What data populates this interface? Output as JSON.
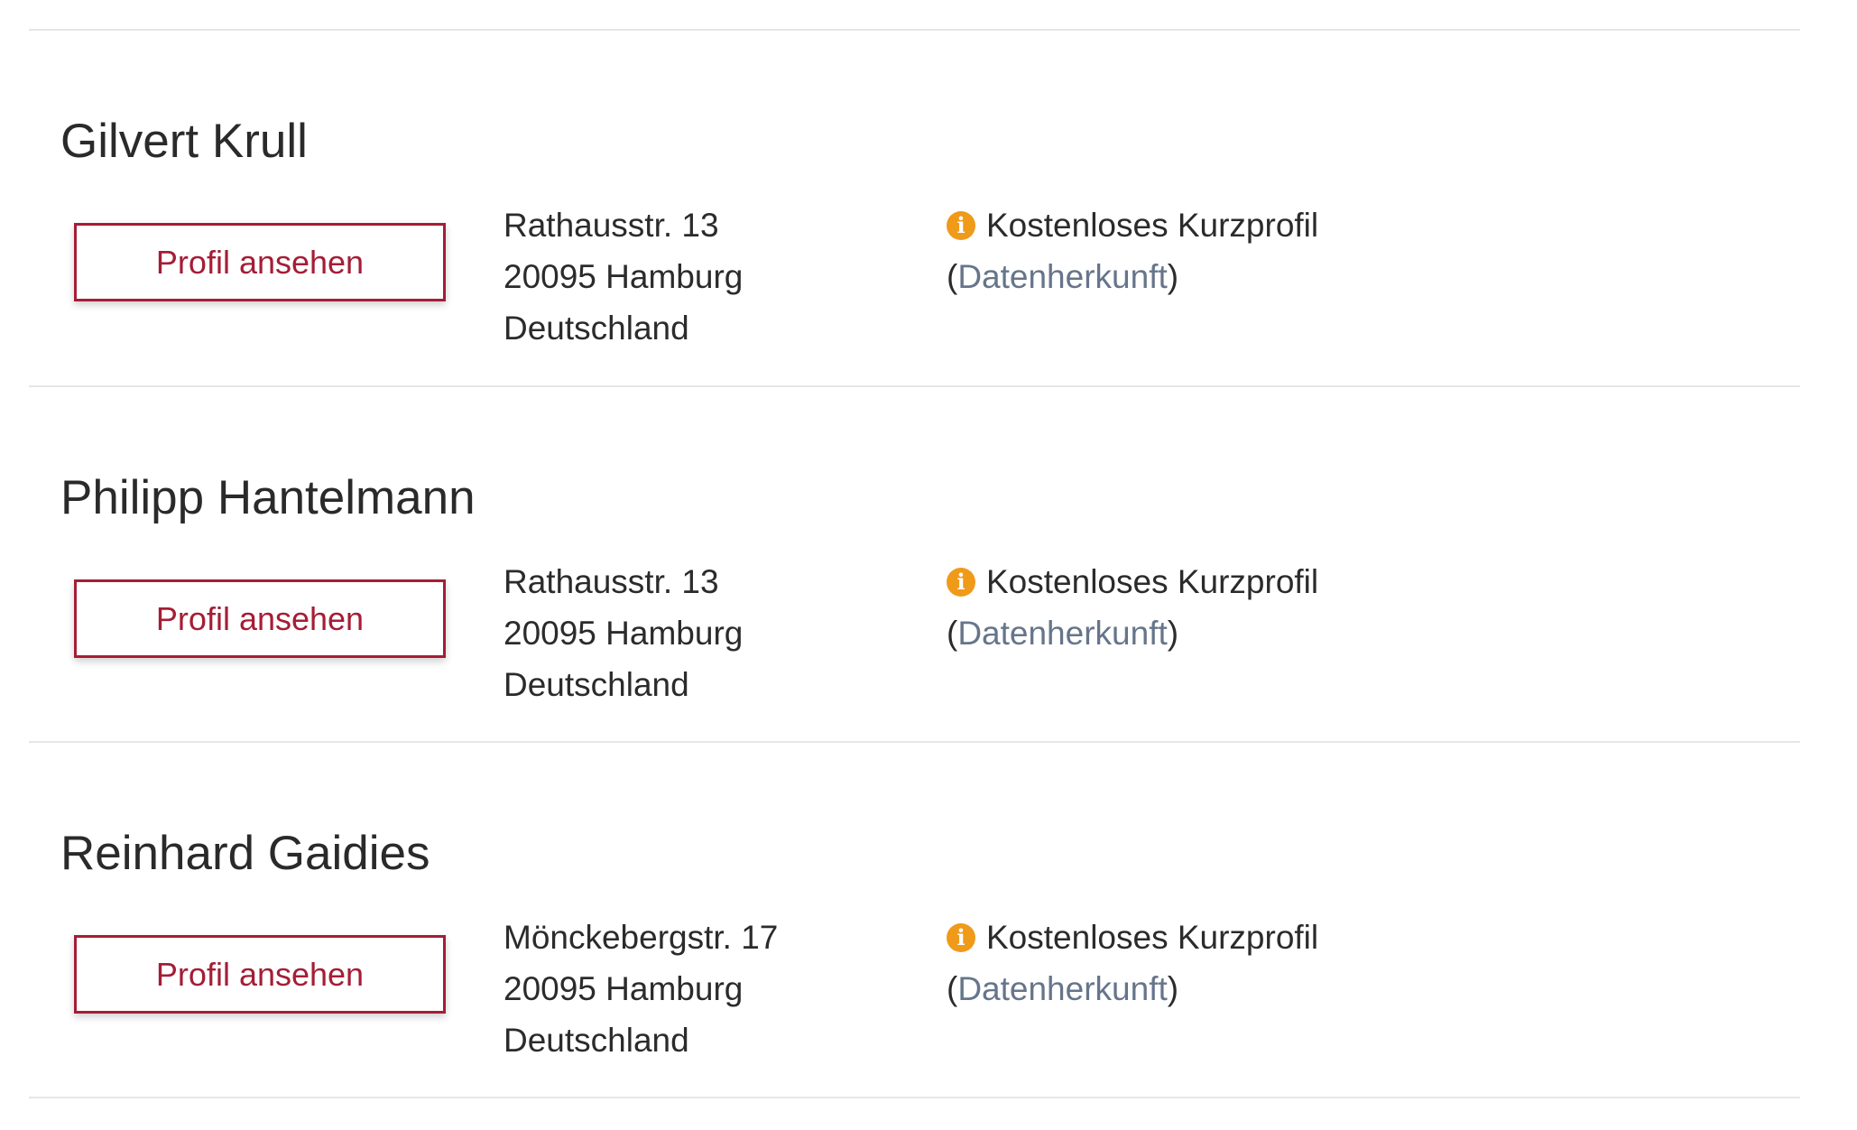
{
  "colors": {
    "accent": "#a51d36",
    "info_icon": "#f09a1a",
    "link": "#66758a"
  },
  "entries": [
    {
      "name": "Gilvert Krull",
      "button": "Profil ansehen",
      "address": [
        "Rathausstr. 13",
        "20095 Hamburg",
        "Deutschland"
      ],
      "profile_type": "Kostenloses Kurzprofil",
      "paren_open": "(",
      "source_link": "Datenherkunft",
      "paren_close": ")",
      "icon": "info-icon"
    },
    {
      "name": "Philipp Hantelmann",
      "button": "Profil ansehen",
      "address": [
        "Rathausstr. 13",
        "20095 Hamburg",
        "Deutschland"
      ],
      "profile_type": "Kostenloses Kurzprofil",
      "paren_open": "(",
      "source_link": "Datenherkunft",
      "paren_close": ")",
      "icon": "info-icon"
    },
    {
      "name": "Reinhard Gaidies",
      "button": "Profil ansehen",
      "address": [
        "Mönckebergstr. 17",
        "20095 Hamburg",
        "Deutschland"
      ],
      "profile_type": "Kostenloses Kurzprofil",
      "paren_open": "(",
      "source_link": "Datenherkunft",
      "paren_close": ")",
      "icon": "info-icon"
    }
  ]
}
